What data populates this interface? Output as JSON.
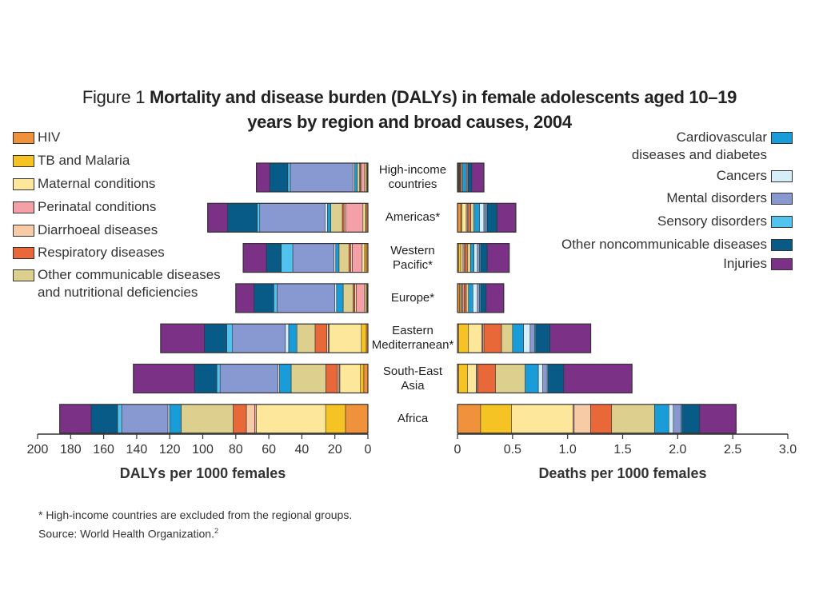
{
  "figure_label": "Figure 1",
  "title": "Mortality and disease burden (DALYs) in female adolescents aged 10–19 years by region and broad causes, 2004",
  "chart_data": [
    {
      "type": "bar",
      "orientation": "horizontal",
      "categories": [
        "High-income\ncountries",
        "Americas*",
        "Western\nPacific*",
        "Europe*",
        "Eastern\nMediterranean*",
        "South-East\nAsia",
        "Africa"
      ],
      "xlabel": "DALYs per 1000 females",
      "xlim": [
        200,
        0
      ],
      "xticks": [
        200,
        180,
        160,
        140,
        120,
        100,
        80,
        60,
        40,
        20,
        0
      ],
      "series": [
        {
          "name": "HIV",
          "color": "#f0923c",
          "values": [
            0.5,
            1,
            1,
            0.5,
            1,
            2.5,
            13.6
          ]
        },
        {
          "name": "TB and Malaria",
          "color": "#f5c324",
          "values": [
            0.5,
            0.5,
            1,
            0.5,
            3,
            2,
            12
          ]
        },
        {
          "name": "Maternal conditions",
          "color": "#fde79a",
          "values": [
            1,
            1.5,
            1.5,
            1,
            19.5,
            12.5,
            42
          ]
        },
        {
          "name": "Perinatal conditions",
          "color": "#f4a0a6",
          "values": [
            2,
            10.5,
            6,
            5,
            0.5,
            0.5,
            1
          ]
        },
        {
          "name": "Diarrhoeal diseases",
          "color": "#f6cba6",
          "values": [
            0.5,
            1,
            1,
            1,
            1,
            1,
            5
          ]
        },
        {
          "name": "Respiratory diseases",
          "color": "#e8683a",
          "values": [
            0.5,
            1,
            1,
            1,
            7,
            7,
            8
          ]
        },
        {
          "name": "Other communicable diseases\nand nutritional deficiencies",
          "color": "#ddd08e",
          "values": [
            1.5,
            7,
            6,
            6,
            11,
            21,
            31.5
          ]
        },
        {
          "name": "Cardiovascular\ndiseases and diabetes",
          "color": "#1a9cd8",
          "values": [
            1.5,
            2,
            2,
            4,
            5,
            7,
            7
          ]
        },
        {
          "name": "Cancers",
          "color": "#d6eef8",
          "values": [
            1,
            1.5,
            1,
            1,
            2,
            1,
            1
          ]
        },
        {
          "name": "Mental disorders",
          "color": "#8898d0",
          "values": [
            38,
            39.5,
            25,
            35,
            32,
            35,
            28
          ]
        },
        {
          "name": "Sensory disorders",
          "color": "#52c2ee",
          "values": [
            1.5,
            1.5,
            7,
            2,
            3.5,
            2,
            2.5
          ]
        },
        {
          "name": "Other noncommunicable diseases",
          "color": "#075b86",
          "values": [
            11,
            18,
            9,
            12,
            13.5,
            13.5,
            16
          ]
        },
        {
          "name": "Injuries",
          "color": "#7b3186",
          "values": [
            8,
            12,
            14,
            11,
            26.5,
            37,
            19
          ]
        }
      ]
    },
    {
      "type": "bar",
      "orientation": "horizontal",
      "xlabel": "Deaths per 1000 females",
      "xlim": [
        0,
        3
      ],
      "xticks": [
        0,
        0.5,
        {
          "value": 1,
          "label": "1.0"
        },
        1.5,
        {
          "value": 2,
          "label": "2.0"
        },
        2.5,
        {
          "value": 3,
          "label": "3.0"
        }
      ],
      "series": [
        {
          "color": "#f0923c",
          "values": [
            0.005,
            0.03,
            0.01,
            0.02,
            0.01,
            0.01,
            0.21
          ]
        },
        {
          "color": "#f5c324",
          "values": [
            0.005,
            0.01,
            0.02,
            0.01,
            0.09,
            0.08,
            0.28
          ]
        },
        {
          "color": "#fde79a",
          "values": [
            0.005,
            0.04,
            0.02,
            0.01,
            0.12,
            0.08,
            0.56
          ]
        },
        {
          "color": "#f4a0a6",
          "values": [
            0.005,
            0.01,
            0.01,
            0.01,
            0.01,
            0.005,
            0.01
          ]
        },
        {
          "color": "#f6cba6",
          "values": [
            0.005,
            0.01,
            0.01,
            0.01,
            0.01,
            0.01,
            0.15
          ]
        },
        {
          "color": "#e8683a",
          "values": [
            0.01,
            0.02,
            0.02,
            0.02,
            0.16,
            0.16,
            0.19
          ]
        },
        {
          "color": "#ddd08e",
          "values": [
            0.01,
            0.03,
            0.03,
            0.02,
            0.1,
            0.27,
            0.39
          ]
        },
        {
          "color": "#1a9cd8",
          "values": [
            0.03,
            0.05,
            0.03,
            0.04,
            0.1,
            0.12,
            0.13
          ]
        },
        {
          "color": "#d6eef8",
          "values": [
            0.01,
            0.04,
            0.03,
            0.04,
            0.06,
            0.04,
            0.04
          ]
        },
        {
          "color": "#8898d0",
          "values": [
            0.01,
            0.02,
            0.02,
            0.02,
            0.04,
            0.04,
            0.07
          ]
        },
        {
          "color": "#52c2ee",
          "values": [
            0.005,
            0.01,
            0.01,
            0.01,
            0.01,
            0.01,
            0.01
          ]
        },
        {
          "color": "#075b86",
          "values": [
            0.03,
            0.09,
            0.06,
            0.05,
            0.13,
            0.14,
            0.16
          ]
        },
        {
          "color": "#7b3186",
          "values": [
            0.11,
            0.17,
            0.2,
            0.16,
            0.37,
            0.62,
            0.33
          ]
        }
      ]
    }
  ],
  "footnote": "* High-income countries are excluded from the regional groups.",
  "source": "Source: World Health Organization.",
  "source_ref": "2"
}
